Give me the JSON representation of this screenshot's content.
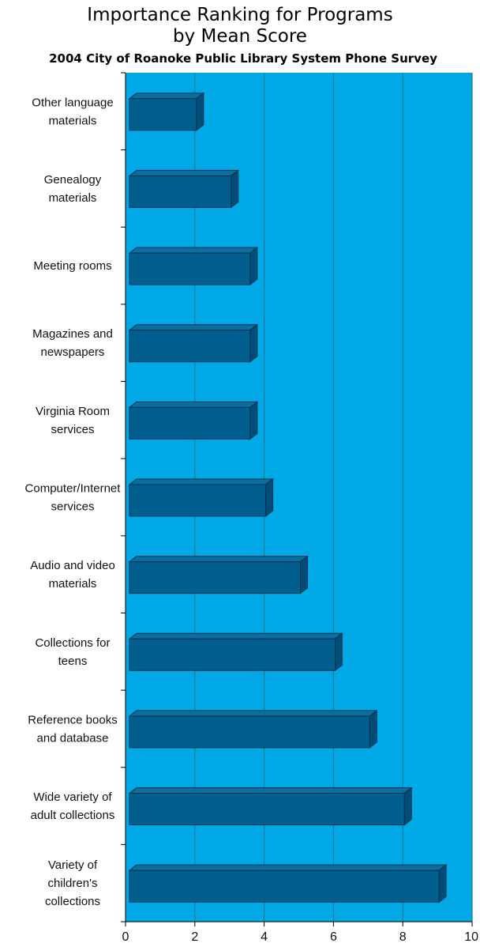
{
  "chart_data": {
    "type": "bar",
    "orientation": "horizontal",
    "title_lines": [
      "Importance Ranking for Programs",
      "by Mean Score"
    ],
    "subtitle": "2004 City of Roanoke Public Library System Phone Survey",
    "categories": [
      [
        "Other language",
        "materials"
      ],
      [
        "Genealogy",
        "materials"
      ],
      [
        "Meeting rooms"
      ],
      [
        "Magazines and",
        "newspapers"
      ],
      [
        "Virginia Room",
        "services"
      ],
      [
        "Computer/Internet",
        "services"
      ],
      [
        "Audio and video",
        "materials"
      ],
      [
        "Collections for",
        "teens"
      ],
      [
        "Reference books",
        "and database"
      ],
      [
        "Wide variety of",
        "adult collections"
      ],
      [
        "Variety of",
        "children's",
        "collections"
      ]
    ],
    "values": [
      2.0,
      3.0,
      3.55,
      3.55,
      3.55,
      4.0,
      5.0,
      6.0,
      7.0,
      8.0,
      9.0
    ],
    "xlim": [
      0,
      10
    ],
    "xticks": [
      "0",
      "2",
      "4",
      "6",
      "8",
      "10"
    ],
    "grid": true,
    "colors": {
      "plot_background": "#00a9e6",
      "bar_front": "#005f8f",
      "bar_top": "#0a6f9f",
      "bar_side": "#004d78",
      "bar_edge": "#00304d",
      "gridline": "#1a6f92",
      "axis": "#000000"
    }
  }
}
